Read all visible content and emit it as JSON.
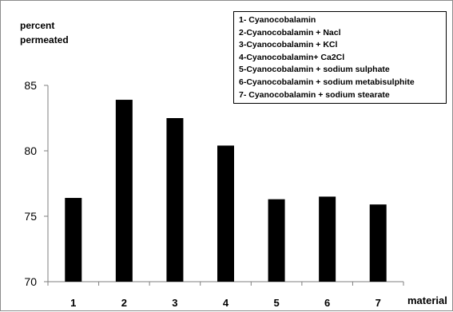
{
  "chart_data": {
    "type": "bar",
    "categories": [
      "1",
      "2",
      "3",
      "4",
      "5",
      "6",
      "7"
    ],
    "values": [
      76.4,
      83.9,
      82.5,
      80.4,
      76.3,
      76.5,
      75.9
    ],
    "ylabel_lines": [
      "percent",
      "permeated"
    ],
    "xlabel": "material",
    "ylim": [
      70,
      85
    ],
    "yticks": [
      "70",
      "75",
      "80",
      "85"
    ],
    "grid": false,
    "legend_position": "top-right",
    "legend": [
      "1- Cyanocobalamin",
      "2-Cyanocobalamin + Nacl",
      "3-Cyanocobalamin + KCl",
      "4-Cyanocobalamin+  Ca2Cl",
      "5-Cyanocobalamin + sodium sulphate",
      "6-Cyanocobalamin + sodium metabisulphite",
      "7- Cyanocobalamin + sodium stearate"
    ],
    "bar_color": "#000000",
    "axis_color": "#7f7f7f"
  }
}
